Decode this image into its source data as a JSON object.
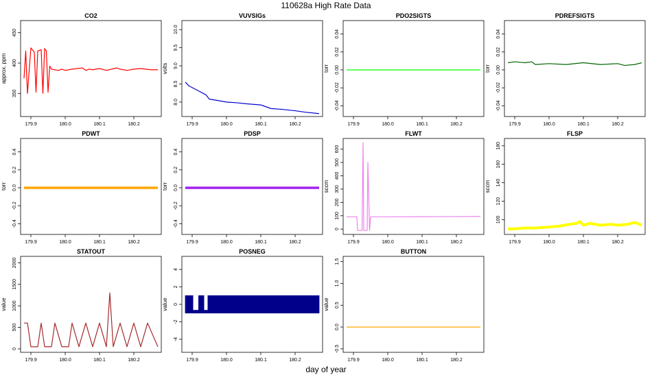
{
  "figure": {
    "title": "110628a   High Rate Data",
    "xlabel": "day of year"
  },
  "chart_data": [
    {
      "type": "line",
      "title": "CO2",
      "ylabel": "approx. ppm",
      "color": "#ff0000",
      "xlim": [
        179.87,
        180.28
      ],
      "ylim": [
        312,
        470
      ],
      "xticks": [
        179.9,
        180.0,
        180.1,
        180.2
      ],
      "xtick_labels": [
        "179.9",
        "180.0",
        "180.1",
        "180.2"
      ],
      "yticks": [
        350,
        400,
        450
      ],
      "ytick_labels": [
        "350",
        "400",
        "450"
      ],
      "x": [
        179.88,
        179.885,
        179.89,
        179.9,
        179.91,
        179.915,
        179.92,
        179.93,
        179.935,
        179.94,
        179.945,
        179.95,
        179.955,
        179.96,
        179.98,
        179.99,
        180.0,
        180.02,
        180.05,
        180.06,
        180.07,
        180.08,
        180.1,
        180.12,
        180.15,
        180.16,
        180.18,
        180.2,
        180.22,
        180.25,
        180.27
      ],
      "y": [
        375,
        420,
        350,
        425,
        418,
        352,
        420,
        422,
        350,
        424,
        420,
        352,
        395,
        390,
        388,
        390,
        388,
        390,
        392,
        388,
        390,
        389,
        391,
        388,
        392,
        390,
        388,
        390,
        391,
        389,
        389
      ]
    },
    {
      "type": "line",
      "title": "VUVSIGs",
      "ylabel": "volts",
      "color": "#0000cc",
      "xlim": [
        179.87,
        180.28
      ],
      "ylim": [
        7.6,
        10.25
      ],
      "xticks": [
        179.9,
        180.0,
        180.1,
        180.2
      ],
      "xtick_labels": [
        "179.9",
        "180.0",
        "180.1",
        "180.2"
      ],
      "yticks": [
        8.0,
        8.5,
        9.0,
        9.5,
        10.0
      ],
      "ytick_labels": [
        "8.0",
        "8.5",
        "9.0",
        "9.5",
        "10.0"
      ],
      "x": [
        179.88,
        179.89,
        179.9,
        179.92,
        179.94,
        179.95,
        179.97,
        180.0,
        180.03,
        180.06,
        180.1,
        180.13,
        180.16,
        180.2,
        180.23,
        180.27
      ],
      "y": [
        8.55,
        8.45,
        8.4,
        8.3,
        8.2,
        8.08,
        8.05,
        8.0,
        7.98,
        7.95,
        7.92,
        7.82,
        7.8,
        7.76,
        7.72,
        7.68
      ]
    },
    {
      "type": "line",
      "title": "PDO2SIGTS",
      "ylabel": "torr",
      "color": "#00ff00",
      "xlim": [
        179.87,
        180.28
      ],
      "ylim": [
        -0.052,
        0.055
      ],
      "xticks": [
        179.9,
        180.0,
        180.1,
        180.2
      ],
      "xtick_labels": [
        "179.9",
        "180.0",
        "180.1",
        "180.2"
      ],
      "yticks": [
        -0.04,
        -0.02,
        0.0,
        0.02,
        0.04
      ],
      "ytick_labels": [
        "-0.04",
        "-0.02",
        "0.00",
        "0.02",
        "0.04"
      ],
      "x": [
        179.88,
        179.9,
        179.95,
        180.0,
        180.05,
        180.1,
        180.15,
        180.2,
        180.27
      ],
      "y": [
        0.0,
        0.0,
        0.0,
        0.0,
        0.0,
        0.0,
        0.0,
        0.0,
        0.0
      ]
    },
    {
      "type": "line",
      "title": "PDREFSIGTS",
      "ylabel": "torr",
      "color": "#006400",
      "xlim": [
        179.87,
        180.28
      ],
      "ylim": [
        -0.052,
        0.055
      ],
      "xticks": [
        179.9,
        180.0,
        180.1,
        180.2
      ],
      "xtick_labels": [
        "179.9",
        "180.0",
        "180.1",
        "180.2"
      ],
      "yticks": [
        -0.04,
        -0.02,
        0.0,
        0.02,
        0.04
      ],
      "ytick_labels": [
        "-0.04",
        "-0.02",
        "0.00",
        "0.02",
        "0.04"
      ],
      "x": [
        179.88,
        179.9,
        179.93,
        179.95,
        179.96,
        180.0,
        180.05,
        180.1,
        180.15,
        180.2,
        180.22,
        180.25,
        180.27
      ],
      "y": [
        0.008,
        0.009,
        0.008,
        0.009,
        0.006,
        0.007,
        0.006,
        0.008,
        0.006,
        0.007,
        0.005,
        0.006,
        0.008
      ]
    },
    {
      "type": "line",
      "title": "PDWT",
      "ylabel": "torr",
      "color": "#ffa500",
      "xlim": [
        179.87,
        180.28
      ],
      "ylim": [
        -0.52,
        0.55
      ],
      "xticks": [
        179.9,
        180.0,
        180.1,
        180.2
      ],
      "xtick_labels": [
        "179.9",
        "180.0",
        "180.1",
        "180.2"
      ],
      "yticks": [
        -0.4,
        -0.2,
        0.0,
        0.2,
        0.4
      ],
      "ytick_labels": [
        "-0.4",
        "-0.2",
        "0.0",
        "0.2",
        "0.4"
      ],
      "x": [
        179.88,
        179.9,
        179.95,
        180.0,
        180.05,
        180.1,
        180.15,
        180.2,
        180.27
      ],
      "y": [
        0.0,
        0.0,
        0.0,
        0.0,
        0.0,
        0.0,
        0.0,
        0.0,
        0.0
      ]
    },
    {
      "type": "line",
      "title": "PDSP",
      "ylabel": "torr",
      "color": "#a020f0",
      "xlim": [
        179.87,
        180.28
      ],
      "ylim": [
        -0.52,
        0.55
      ],
      "xticks": [
        179.9,
        180.0,
        180.1,
        180.2
      ],
      "xtick_labels": [
        "179.9",
        "180.0",
        "180.1",
        "180.2"
      ],
      "yticks": [
        -0.4,
        -0.2,
        0.0,
        0.2,
        0.4
      ],
      "ytick_labels": [
        "-0.4",
        "-0.2",
        "0.0",
        "0.2",
        "0.4"
      ],
      "x": [
        179.88,
        179.9,
        179.95,
        180.0,
        180.05,
        180.1,
        180.15,
        180.2,
        180.27
      ],
      "y": [
        0.0,
        0.0,
        0.0,
        0.0,
        0.0,
        0.0,
        0.0,
        0.0,
        0.0
      ]
    },
    {
      "type": "line",
      "title": "FLWT",
      "ylabel": "sccm",
      "color": "#ee82ee",
      "xlim": [
        179.87,
        180.28
      ],
      "ylim": [
        -40,
        680
      ],
      "xticks": [
        179.9,
        180.0,
        180.1,
        180.2
      ],
      "xtick_labels": [
        "179.9",
        "180.0",
        "180.1",
        "180.2"
      ],
      "yticks": [
        0,
        100,
        200,
        300,
        400,
        500,
        600
      ],
      "ytick_labels": [
        "0",
        "100",
        "200",
        "300",
        "400",
        "500",
        "600"
      ],
      "x": [
        179.88,
        179.91,
        179.912,
        179.925,
        179.928,
        179.93,
        179.935,
        179.94,
        179.942,
        179.947,
        179.95,
        179.96,
        180.0,
        180.1,
        180.2,
        180.27
      ],
      "y": [
        92,
        92,
        -10,
        -10,
        650,
        -10,
        -10,
        -10,
        500,
        -10,
        92,
        92,
        92,
        93,
        94,
        95
      ]
    },
    {
      "type": "line",
      "title": "FLSP",
      "ylabel": "sccm",
      "color": "#ffff00",
      "xlim": [
        179.87,
        180.28
      ],
      "ylim": [
        84,
        188
      ],
      "xticks": [
        179.9,
        180.0,
        180.1,
        180.2
      ],
      "xtick_labels": [
        "179.9",
        "180.0",
        "180.1",
        "180.2"
      ],
      "yticks": [
        100,
        120,
        140,
        160,
        180
      ],
      "ytick_labels": [
        "100",
        "120",
        "140",
        "160",
        "180"
      ],
      "x": [
        179.88,
        179.9,
        179.93,
        179.96,
        180.0,
        180.03,
        180.06,
        180.08,
        180.09,
        180.1,
        180.12,
        180.15,
        180.18,
        180.2,
        180.23,
        180.25,
        180.27
      ],
      "y": [
        90,
        90,
        91,
        91,
        92,
        93,
        95,
        96,
        98,
        94,
        96,
        94,
        95,
        94,
        95,
        97,
        94
      ]
    },
    {
      "type": "line",
      "title": "STATOUT",
      "ylabel": "value",
      "color": "#a52a2a",
      "xlim": [
        179.87,
        180.28
      ],
      "ylim": [
        -80,
        2150
      ],
      "xticks": [
        179.9,
        180.0,
        180.1,
        180.2
      ],
      "xtick_labels": [
        "179.9",
        "180.0",
        "180.1",
        "180.2"
      ],
      "yticks": [
        0,
        500,
        1000,
        1500,
        2000
      ],
      "ytick_labels": [
        "0",
        "500",
        "1000",
        "1500",
        "2000"
      ],
      "x": [
        179.88,
        179.89,
        179.9,
        179.92,
        179.93,
        179.94,
        179.96,
        179.97,
        179.99,
        180.01,
        180.02,
        180.04,
        180.06,
        180.08,
        180.1,
        180.12,
        180.13,
        180.14,
        180.16,
        180.18,
        180.2,
        180.22,
        180.24,
        180.27
      ],
      "y": [
        600,
        600,
        50,
        50,
        600,
        50,
        50,
        600,
        50,
        50,
        600,
        50,
        600,
        50,
        600,
        50,
        1300,
        50,
        600,
        50,
        600,
        50,
        600,
        50
      ]
    },
    {
      "type": "area",
      "title": "POSNEG",
      "ylabel": "value",
      "color": "#00008b",
      "xlim": [
        179.87,
        180.28
      ],
      "ylim": [
        -5.5,
        5.5
      ],
      "xticks": [
        179.9,
        180.0,
        180.1,
        180.2
      ],
      "xtick_labels": [
        "179.9",
        "180.0",
        "180.1",
        "180.2"
      ],
      "yticks": [
        -4,
        -2,
        0,
        2,
        4
      ],
      "ytick_labels": [
        "-4",
        "-2",
        "0",
        "2",
        "4"
      ],
      "x": [
        179.88,
        179.9,
        179.925,
        179.94,
        179.95,
        180.27
      ],
      "y": [
        1,
        1,
        1,
        1,
        1,
        1
      ]
    },
    {
      "type": "line",
      "title": "BUTTON",
      "ylabel": "value",
      "color": "#ffa500",
      "xlim": [
        179.87,
        180.28
      ],
      "ylim": [
        -0.58,
        1.62
      ],
      "xticks": [
        179.9,
        180.0,
        180.1,
        180.2
      ],
      "xtick_labels": [
        "179.9",
        "180.0",
        "180.1",
        "180.2"
      ],
      "yticks": [
        -0.5,
        0.0,
        0.5,
        1.0,
        1.5
      ],
      "ytick_labels": [
        "-0.5",
        "0.0",
        "0.5",
        "1.0",
        "1.5"
      ],
      "x": [
        179.88,
        180.27
      ],
      "y": [
        0,
        0
      ]
    }
  ]
}
